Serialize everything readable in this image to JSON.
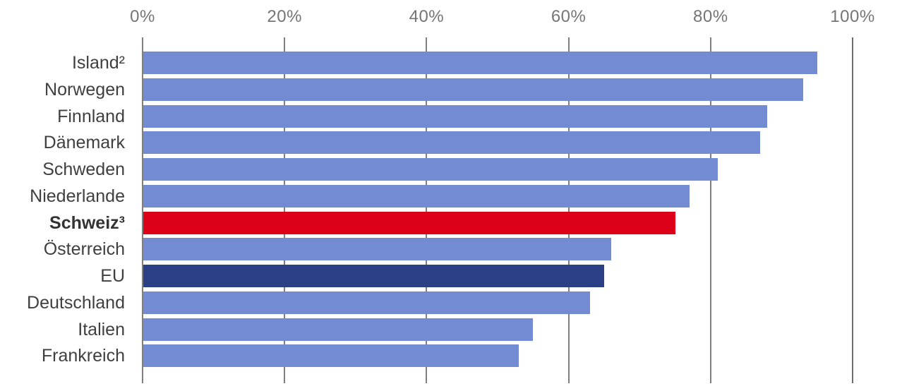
{
  "chart_data": {
    "type": "bar",
    "orientation": "horizontal",
    "title": "",
    "xlabel": "",
    "ylabel": "",
    "categories": [
      "Island²",
      "Norwegen",
      "Finnland",
      "Dänemark",
      "Schweden",
      "Niederlande",
      "Schweiz³",
      "Österreich",
      "EU",
      "Deutschland",
      "Italien",
      "Frankreich"
    ],
    "values": [
      95,
      93,
      88,
      87,
      81,
      77,
      75,
      66,
      65,
      63,
      55,
      53
    ],
    "unit": "%",
    "xlim": [
      0,
      100
    ],
    "x_ticks": [
      {
        "label": "0%",
        "value": 0
      },
      {
        "label": "20%",
        "value": 20
      },
      {
        "label": "40%",
        "value": 40
      },
      {
        "label": "60%",
        "value": 60
      },
      {
        "label": "80%",
        "value": 80
      },
      {
        "label": "100%",
        "value": 100
      }
    ],
    "grid": "vertical-on",
    "legend": "none",
    "emphasis": {
      "Schweiz³": {
        "color_key": "bar_switzerland",
        "bold_label": true
      },
      "EU": {
        "color_key": "bar_eu",
        "bold_label": false
      }
    }
  },
  "colors": {
    "bar_default": "#728BD3",
    "bar_switzerland": "#DC0018",
    "bar_eu": "#2B4084",
    "gridline": "#7f7f7f",
    "axis_tick_text": "#757575",
    "category_text": "#3f3f3f",
    "background": "#ffffff"
  }
}
